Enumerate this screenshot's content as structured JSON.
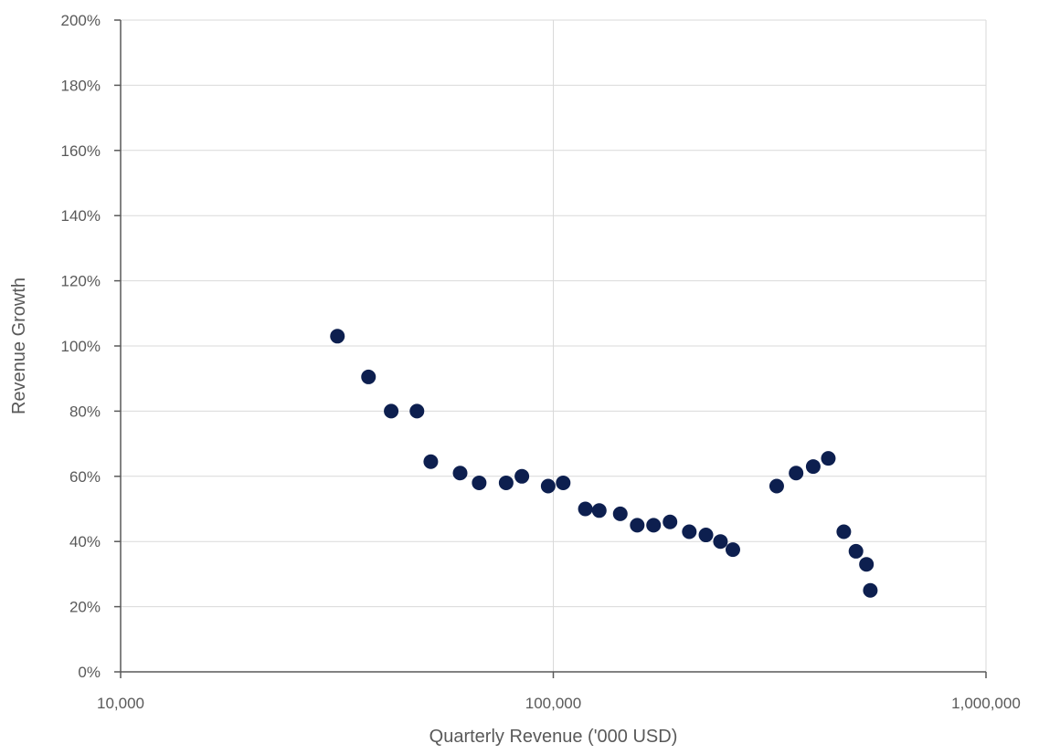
{
  "chart_data": {
    "type": "scatter",
    "title": "",
    "xlabel": "Quarterly Revenue ('000 USD)",
    "ylabel": "Revenue Growth",
    "x_scale": "log",
    "xlim": [
      10000,
      1000000
    ],
    "ylim": [
      0,
      2.0
    ],
    "x_ticks": [
      10000,
      100000,
      1000000
    ],
    "x_tick_labels": [
      "10,000",
      "100,000",
      "1,000,000"
    ],
    "y_ticks": [
      0,
      0.2,
      0.4,
      0.6,
      0.8,
      1.0,
      1.2,
      1.4,
      1.6,
      1.8,
      2.0
    ],
    "y_tick_labels": [
      "0%",
      "20%",
      "40%",
      "60%",
      "80%",
      "100%",
      "120%",
      "140%",
      "160%",
      "180%",
      "200%"
    ],
    "grid": true,
    "legend": "none",
    "marker_color": "#0d1f4f",
    "gridline_color": "#d9d9d9",
    "axis_color": "#595959",
    "series": [
      {
        "points": [
          {
            "x": 31700,
            "y": 1.03
          },
          {
            "x": 37400,
            "y": 0.905
          },
          {
            "x": 42200,
            "y": 0.8
          },
          {
            "x": 48400,
            "y": 0.8
          },
          {
            "x": 52100,
            "y": 0.645
          },
          {
            "x": 60900,
            "y": 0.61
          },
          {
            "x": 67400,
            "y": 0.58
          },
          {
            "x": 77800,
            "y": 0.58
          },
          {
            "x": 84600,
            "y": 0.6
          },
          {
            "x": 97300,
            "y": 0.57
          },
          {
            "x": 105400,
            "y": 0.58
          },
          {
            "x": 118600,
            "y": 0.5
          },
          {
            "x": 127700,
            "y": 0.495
          },
          {
            "x": 142800,
            "y": 0.485
          },
          {
            "x": 156300,
            "y": 0.45
          },
          {
            "x": 170500,
            "y": 0.45
          },
          {
            "x": 186100,
            "y": 0.46
          },
          {
            "x": 206200,
            "y": 0.43
          },
          {
            "x": 225300,
            "y": 0.42
          },
          {
            "x": 243400,
            "y": 0.4
          },
          {
            "x": 260000,
            "y": 0.375
          },
          {
            "x": 328300,
            "y": 0.57
          },
          {
            "x": 364000,
            "y": 0.61
          },
          {
            "x": 398700,
            "y": 0.63
          },
          {
            "x": 432100,
            "y": 0.655
          },
          {
            "x": 469200,
            "y": 0.43
          },
          {
            "x": 500600,
            "y": 0.37
          },
          {
            "x": 529300,
            "y": 0.33
          },
          {
            "x": 540300,
            "y": 0.25
          }
        ]
      }
    ]
  }
}
